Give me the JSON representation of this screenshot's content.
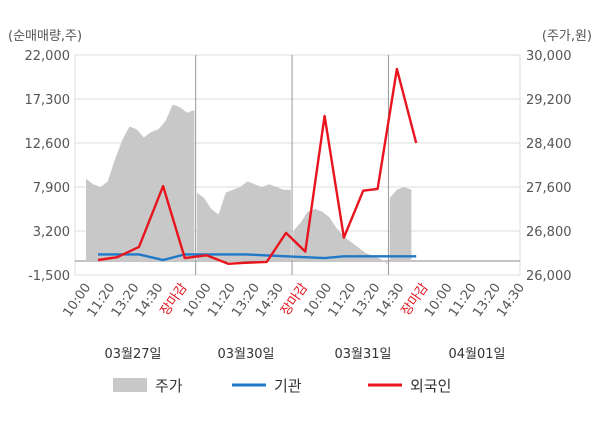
{
  "chart_data": {
    "type": "line",
    "left_axis": {
      "unit_label": "(순매매량,주)",
      "ticks": [
        "22,000",
        "17,300",
        "12,600",
        "7,900",
        "3,200",
        "-1,500"
      ],
      "range": [
        -1500,
        22000
      ]
    },
    "right_axis": {
      "unit_label": "(주가,원)",
      "ticks": [
        "30,000",
        "29,200",
        "28,400",
        "27,600",
        "26,800",
        "26,000"
      ],
      "range": [
        26000,
        30000
      ]
    },
    "x_tick_labels": [
      "10:00",
      "11:20",
      "13:20",
      "14:30",
      "장마감",
      "10:00",
      "11:20",
      "13:20",
      "14:30",
      "장마감",
      "10:00",
      "11:20",
      "13:20",
      "14:30",
      "장마감",
      "10:00",
      "11:20",
      "13:20",
      "14:30"
    ],
    "close_label": "장마감",
    "dates": [
      "03월27일",
      "03월30일",
      "03월31일",
      "04월01일"
    ],
    "legend": [
      "주가",
      "기관",
      "외국인"
    ],
    "colors": {
      "price": "#c8c8c8",
      "institution": "#1f78c8",
      "foreign": "#e8141e",
      "close": "#e0141e",
      "grid": "#dddddd"
    },
    "price_series": [
      {
        "i": 0,
        "v": 27750
      },
      {
        "i": 0.3,
        "v": 27650
      },
      {
        "i": 0.6,
        "v": 27600
      },
      {
        "i": 0.9,
        "v": 27700
      },
      {
        "i": 1.2,
        "v": 28100
      },
      {
        "i": 1.5,
        "v": 28450
      },
      {
        "i": 1.8,
        "v": 28700
      },
      {
        "i": 2.1,
        "v": 28650
      },
      {
        "i": 2.4,
        "v": 28500
      },
      {
        "i": 2.7,
        "v": 28600
      },
      {
        "i": 3.0,
        "v": 28650
      },
      {
        "i": 3.3,
        "v": 28800
      },
      {
        "i": 3.6,
        "v": 29100
      },
      {
        "i": 3.9,
        "v": 29050
      },
      {
        "i": 4.2,
        "v": 28950
      },
      {
        "i": 4.5,
        "v": 29000
      },
      {
        "i": 4.6,
        "v": 27500
      },
      {
        "i": 4.9,
        "v": 27400
      },
      {
        "i": 5.2,
        "v": 27200
      },
      {
        "i": 5.5,
        "v": 27100
      },
      {
        "i": 5.8,
        "v": 27500
      },
      {
        "i": 6.1,
        "v": 27550
      },
      {
        "i": 6.4,
        "v": 27600
      },
      {
        "i": 6.7,
        "v": 27700
      },
      {
        "i": 7.0,
        "v": 27650
      },
      {
        "i": 7.3,
        "v": 27600
      },
      {
        "i": 7.6,
        "v": 27650
      },
      {
        "i": 7.9,
        "v": 27600
      },
      {
        "i": 8.2,
        "v": 27550
      },
      {
        "i": 8.5,
        "v": 27550
      },
      {
        "i": 8.6,
        "v": 26800
      },
      {
        "i": 8.9,
        "v": 26950
      },
      {
        "i": 9.2,
        "v": 27150
      },
      {
        "i": 9.5,
        "v": 27200
      },
      {
        "i": 9.8,
        "v": 27150
      },
      {
        "i": 10.1,
        "v": 27050
      },
      {
        "i": 10.4,
        "v": 26850
      },
      {
        "i": 10.7,
        "v": 26700
      },
      {
        "i": 11.0,
        "v": 26600
      },
      {
        "i": 11.3,
        "v": 26500
      },
      {
        "i": 11.6,
        "v": 26400
      },
      {
        "i": 11.9,
        "v": 26350
      },
      {
        "i": 12.2,
        "v": 26300
      },
      {
        "i": 12.5,
        "v": 26200
      },
      {
        "i": 12.6,
        "v": 27400
      },
      {
        "i": 12.9,
        "v": 27550
      },
      {
        "i": 13.2,
        "v": 27600
      },
      {
        "i": 13.5,
        "v": 27550
      }
    ],
    "foreign_series": [
      {
        "i": 0.5,
        "v": 100
      },
      {
        "i": 1.3,
        "v": 400
      },
      {
        "i": 2.2,
        "v": 1500
      },
      {
        "i": 3.2,
        "v": 8000
      },
      {
        "i": 4.1,
        "v": 300
      },
      {
        "i": 5.0,
        "v": 600
      },
      {
        "i": 5.9,
        "v": -300
      },
      {
        "i": 6.6,
        "v": -200
      },
      {
        "i": 7.5,
        "v": -100
      },
      {
        "i": 8.3,
        "v": 3000
      },
      {
        "i": 9.1,
        "v": 1000
      },
      {
        "i": 9.9,
        "v": 15500
      },
      {
        "i": 10.7,
        "v": 2500
      },
      {
        "i": 11.5,
        "v": 7500
      },
      {
        "i": 12.1,
        "v": 7700
      },
      {
        "i": 12.9,
        "v": 20500
      },
      {
        "i": 13.7,
        "v": 12600
      }
    ],
    "institution_series": [
      {
        "i": 0.5,
        "v": 700
      },
      {
        "i": 2.2,
        "v": 700
      },
      {
        "i": 3.2,
        "v": 100
      },
      {
        "i": 4.1,
        "v": 700
      },
      {
        "i": 6.6,
        "v": 700
      },
      {
        "i": 8.3,
        "v": 500
      },
      {
        "i": 9.9,
        "v": 300
      },
      {
        "i": 10.7,
        "v": 500
      },
      {
        "i": 12.1,
        "v": 500
      },
      {
        "i": 13.7,
        "v": 500
      }
    ]
  }
}
